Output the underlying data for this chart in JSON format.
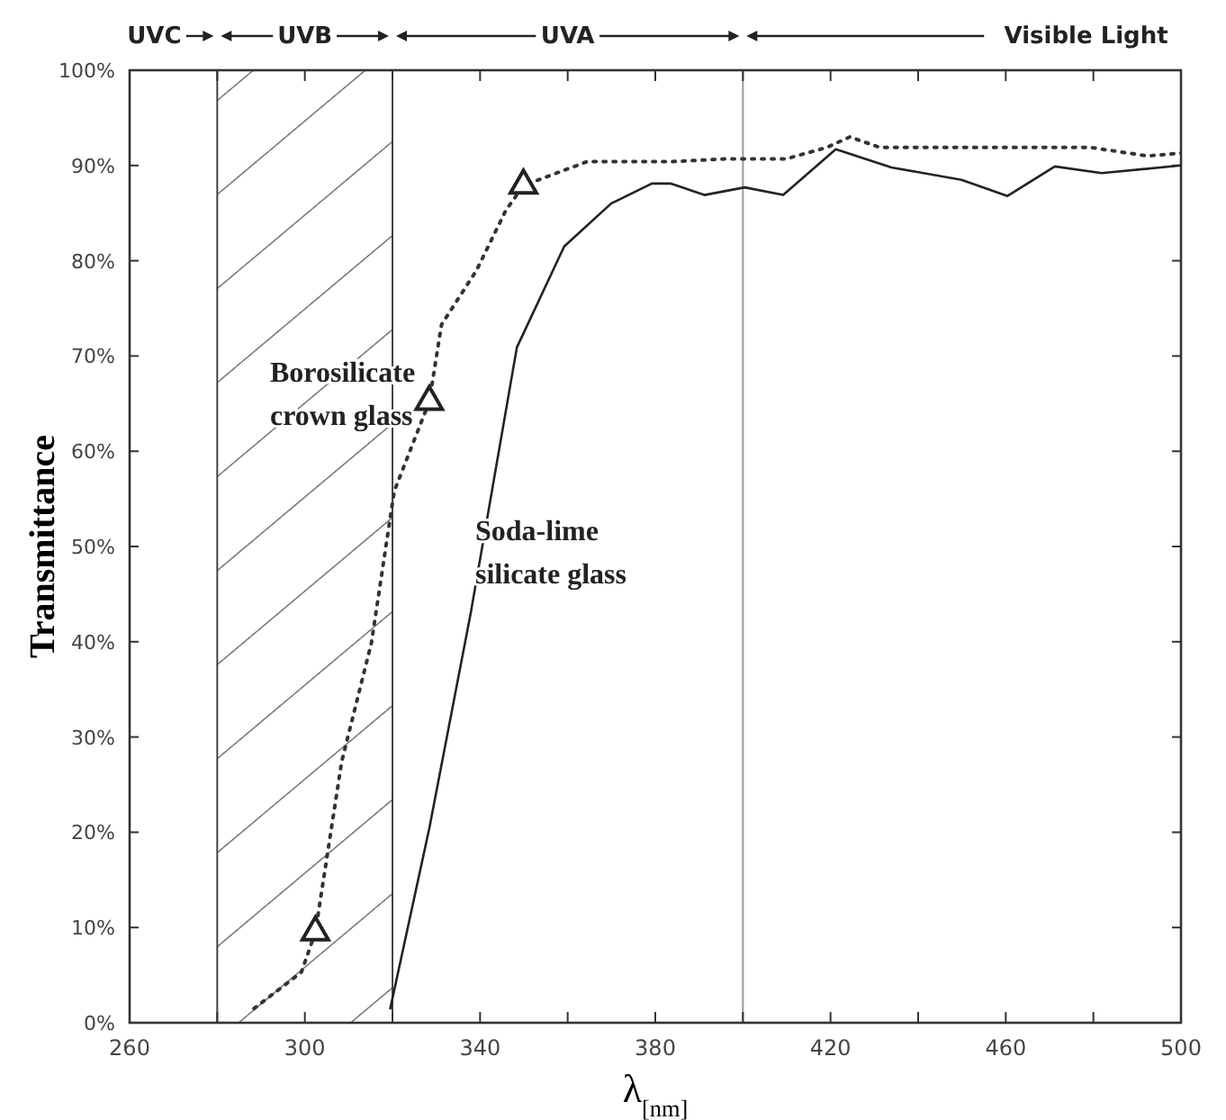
{
  "chart_data": {
    "type": "line",
    "xlabel": "λ$_{[nm]}$",
    "ylabel": "Transmittance",
    "xlim": [
      260,
      500
    ],
    "ylim": [
      0,
      100
    ],
    "xticks": [
      260,
      {
        "value": 280,
        "label": null
      },
      300,
      {
        "value": 320,
        "label": null
      },
      340,
      {
        "value": 360,
        "label": null
      },
      380,
      {
        "value": 400,
        "label": null
      },
      420,
      {
        "value": 440,
        "label": null
      },
      460,
      {
        "value": 480,
        "label": null
      },
      500
    ],
    "yticks": [
      {
        "value": 0,
        "label": "0%"
      },
      {
        "value": 10,
        "label": "10%"
      },
      {
        "value": 20,
        "label": "20%"
      },
      {
        "value": 30,
        "label": "30%"
      },
      {
        "value": 40,
        "label": "40%"
      },
      {
        "value": 50,
        "label": "50%"
      },
      {
        "value": 60,
        "label": "60%"
      },
      {
        "value": 70,
        "label": "70%"
      },
      {
        "value": 80,
        "label": "80%"
      },
      {
        "value": 90,
        "label": "90%"
      },
      {
        "value": 100,
        "label": "100%"
      }
    ],
    "grid": false,
    "annotations": [
      "UVC",
      "UVB",
      "UVA",
      "Visible Light"
    ],
    "ref_lines": [
      {
        "axis": "x",
        "value": 280,
        "color": "#444444"
      },
      {
        "axis": "x",
        "value": 320,
        "color": "#444444"
      },
      {
        "axis": "x",
        "value": 400,
        "color": "#999999"
      }
    ],
    "bands": [
      {
        "axis": "x",
        "from": 280,
        "to": 320,
        "color": "#555555"
      }
    ],
    "series": [
      {
        "name": "Borosilicate crown glass",
        "color": "#333333",
        "line_style": "dotted",
        "marker": "none",
        "x": [
          288.4,
          299.2,
          302.4,
          308.4,
          315.2,
          320.4,
          328.4,
          331.2,
          339.2,
          345.9,
          349.9,
          364.4,
          383.6,
          396.4,
          409.9,
          419.2,
          424.4,
          431.2,
          443.2,
          463.2,
          479.2,
          492.4,
          500
        ],
        "values": [
          1.5,
          5.3,
          9.5,
          27.4,
          39.9,
          55.8,
          65.2,
          73.3,
          79.0,
          85.3,
          87.9,
          90.4,
          90.4,
          90.7,
          90.7,
          91.9,
          93.0,
          91.9,
          91.9,
          91.9,
          91.9,
          91.0,
          91.3
        ]
      },
      {
        "name": "Soda-lime silicate glass",
        "color": "#222222",
        "line_style": "solid",
        "marker": "none",
        "x": [
          319.5,
          328.4,
          337.9,
          348.4,
          359.2,
          369.9,
          379.2,
          383.6,
          391.2,
          400.4,
          409.2,
          421.2,
          433.9,
          449.9,
          460.4,
          471.2,
          481.9,
          500
        ],
        "values": [
          1.5,
          20.4,
          43.1,
          70.9,
          81.5,
          86.0,
          88.1,
          88.1,
          86.9,
          87.7,
          86.9,
          91.7,
          89.8,
          88.5,
          86.8,
          89.9,
          89.2,
          90.0
        ]
      },
      {
        "type": "scatter",
        "color": "#222222",
        "marker": "triangle",
        "x": [
          302.4,
          328.4,
          349.9
        ],
        "values": [
          9.5,
          65.2,
          87.9
        ]
      }
    ]
  }
}
